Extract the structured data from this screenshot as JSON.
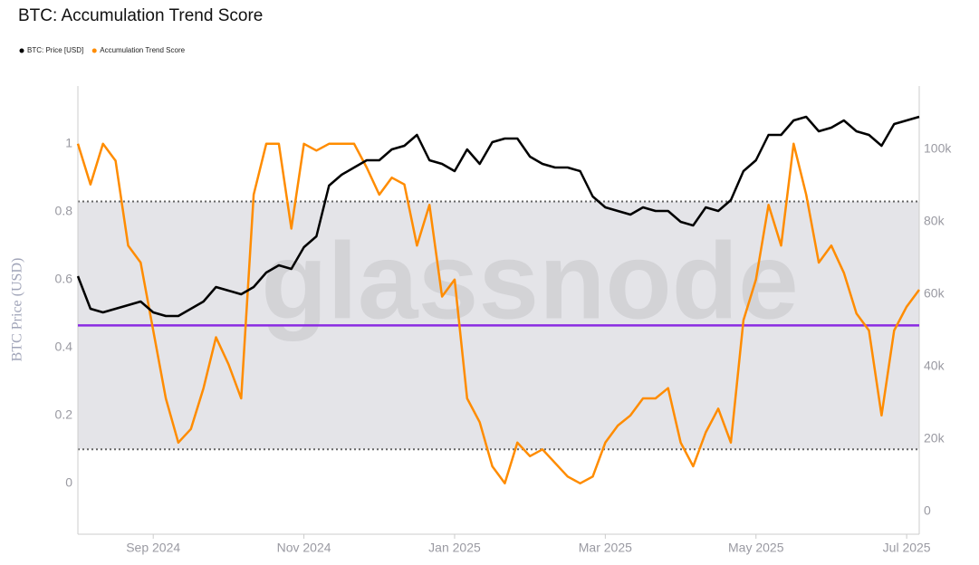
{
  "chart_data": {
    "type": "line",
    "title": "BTC: Accumulation Trend Score",
    "ylabel": "BTC Price (USD)",
    "watermark": "glassnode",
    "categories": [
      null,
      null,
      null,
      null,
      null,
      null,
      "Sep 2024",
      null,
      null,
      null,
      null,
      null,
      null,
      null,
      null,
      null,
      null,
      null,
      "Nov 2024",
      null,
      null,
      null,
      null,
      null,
      null,
      null,
      null,
      null,
      null,
      null,
      "Jan 2025",
      null,
      null,
      null,
      null,
      null,
      null,
      null,
      null,
      null,
      null,
      null,
      "Mar 2025",
      null,
      null,
      null,
      null,
      null,
      null,
      null,
      null,
      null,
      null,
      null,
      "May 2025",
      null,
      null,
      null,
      null,
      null,
      null,
      null,
      null,
      null,
      null,
      null,
      "Jul 2025",
      null
    ],
    "ylim": [
      -0.15,
      1.17
    ],
    "yticks": [
      0,
      0.2,
      0.4,
      0.6,
      0.8,
      1
    ],
    "y2lim": [
      -6250,
      117500
    ],
    "y2ticks": [
      0,
      {
        "value": 20000,
        "label": "20k"
      },
      {
        "value": 40000,
        "label": "40k"
      },
      {
        "value": 60000,
        "label": "60k"
      },
      {
        "value": 80000,
        "label": "80k"
      },
      {
        "value": 100000,
        "label": "100k"
      }
    ],
    "band": [
      0.1,
      0.83
    ],
    "midline": 0.465,
    "series": [
      {
        "name": "BTC: Price [USD]",
        "color": "#000000",
        "axis": "y2",
        "values": [
          65000,
          56000,
          55000,
          56000,
          57000,
          58000,
          55000,
          54000,
          54000,
          56000,
          58000,
          62000,
          61000,
          60000,
          62000,
          66000,
          68000,
          67000,
          73000,
          76000,
          90000,
          93000,
          95000,
          97000,
          97000,
          100000,
          101000,
          104000,
          97000,
          96000,
          94000,
          100000,
          96000,
          102000,
          103000,
          103000,
          98000,
          96000,
          95000,
          95000,
          94000,
          87000,
          84000,
          83000,
          82000,
          84000,
          83000,
          83000,
          80000,
          79000,
          84000,
          83000,
          86000,
          94000,
          97000,
          104000,
          104000,
          108000,
          109000,
          105000,
          106000,
          108000,
          105000,
          104000,
          101000,
          107000,
          108000,
          109000
        ]
      },
      {
        "name": "Accumulation Trend Score",
        "color": "#ff8c00",
        "values": [
          1.0,
          0.88,
          1.0,
          0.95,
          0.7,
          0.65,
          0.45,
          0.25,
          0.12,
          0.16,
          0.28,
          0.43,
          0.35,
          0.25,
          0.85,
          1.0,
          1.0,
          0.75,
          1.0,
          0.98,
          1.0,
          1.0,
          1.0,
          0.93,
          0.85,
          0.9,
          0.88,
          0.7,
          0.82,
          0.55,
          0.6,
          0.25,
          0.18,
          0.05,
          0.0,
          0.12,
          0.08,
          0.1,
          0.06,
          0.02,
          0.0,
          0.02,
          0.12,
          0.17,
          0.2,
          0.25,
          0.25,
          0.28,
          0.12,
          0.05,
          0.15,
          0.22,
          0.12,
          0.48,
          0.6,
          0.82,
          0.7,
          1.0,
          0.85,
          0.65,
          0.7,
          0.62,
          0.5,
          0.45,
          0.2,
          0.45,
          0.52,
          0.57
        ]
      }
    ]
  }
}
